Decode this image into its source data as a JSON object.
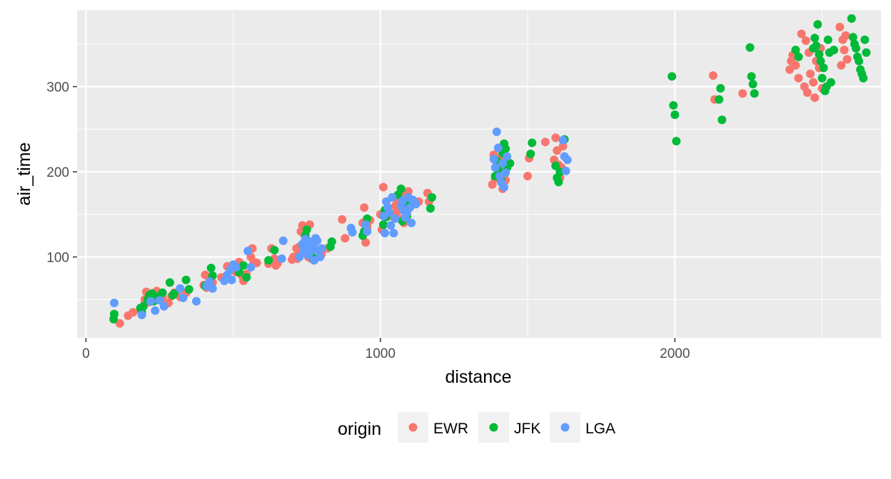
{
  "chart_data": {
    "type": "scatter",
    "title": "",
    "xlabel": "distance",
    "ylabel": "air_time",
    "xlim": [
      -30,
      2700
    ],
    "ylim": [
      5,
      390
    ],
    "x_ticks": [
      0,
      1000,
      2000
    ],
    "y_ticks": [
      100,
      200,
      300
    ],
    "x_minor_ticks": [
      500,
      1500,
      2500
    ],
    "y_minor_ticks": [
      50,
      150,
      250,
      350
    ],
    "grid": true,
    "legend": {
      "title": "origin",
      "position": "bottom"
    },
    "series": [
      {
        "name": "EWR",
        "color": "#F8766D",
        "points": [
          [
            115,
            22
          ],
          [
            143,
            31
          ],
          [
            160,
            35
          ],
          [
            185,
            38
          ],
          [
            200,
            45
          ],
          [
            205,
            59
          ],
          [
            200,
            50
          ],
          [
            215,
            47
          ],
          [
            230,
            56
          ],
          [
            240,
            60
          ],
          [
            260,
            52
          ],
          [
            280,
            46
          ],
          [
            290,
            54
          ],
          [
            300,
            58
          ],
          [
            320,
            53
          ],
          [
            340,
            58
          ],
          [
            400,
            67
          ],
          [
            405,
            79
          ],
          [
            410,
            64
          ],
          [
            420,
            73
          ],
          [
            430,
            70
          ],
          [
            460,
            76
          ],
          [
            480,
            89
          ],
          [
            495,
            85
          ],
          [
            510,
            82
          ],
          [
            520,
            94
          ],
          [
            530,
            78
          ],
          [
            535,
            72
          ],
          [
            545,
            80
          ],
          [
            560,
            100
          ],
          [
            565,
            110
          ],
          [
            570,
            94
          ],
          [
            580,
            93
          ],
          [
            620,
            92
          ],
          [
            630,
            110
          ],
          [
            640,
            98
          ],
          [
            645,
            90
          ],
          [
            650,
            92
          ],
          [
            700,
            97
          ],
          [
            705,
            100
          ],
          [
            715,
            110
          ],
          [
            718,
            98
          ],
          [
            720,
            108
          ],
          [
            725,
            112
          ],
          [
            730,
            130
          ],
          [
            735,
            137
          ],
          [
            740,
            127
          ],
          [
            745,
            105
          ],
          [
            750,
            120
          ],
          [
            755,
            100
          ],
          [
            760,
            138
          ],
          [
            765,
            98
          ],
          [
            770,
            112
          ],
          [
            780,
            118
          ],
          [
            800,
            103
          ],
          [
            820,
            110
          ],
          [
            870,
            144
          ],
          [
            880,
            122
          ],
          [
            940,
            140
          ],
          [
            945,
            158
          ],
          [
            950,
            117
          ],
          [
            955,
            135
          ],
          [
            965,
            143
          ],
          [
            1000,
            150
          ],
          [
            1005,
            132
          ],
          [
            1010,
            182
          ],
          [
            1020,
            155
          ],
          [
            1030,
            148
          ],
          [
            1040,
            170
          ],
          [
            1050,
            160
          ],
          [
            1055,
            153
          ],
          [
            1060,
            165
          ],
          [
            1065,
            145
          ],
          [
            1070,
            175
          ],
          [
            1080,
            140
          ],
          [
            1090,
            157
          ],
          [
            1095,
            177
          ],
          [
            1100,
            160
          ],
          [
            1130,
            165
          ],
          [
            1160,
            175
          ],
          [
            1165,
            165
          ],
          [
            1380,
            185
          ],
          [
            1385,
            220
          ],
          [
            1390,
            192
          ],
          [
            1395,
            208
          ],
          [
            1400,
            200
          ],
          [
            1405,
            215
          ],
          [
            1415,
            180
          ],
          [
            1420,
            196
          ],
          [
            1425,
            190
          ],
          [
            1500,
            195
          ],
          [
            1505,
            216
          ],
          [
            1560,
            235
          ],
          [
            1590,
            214
          ],
          [
            1595,
            240
          ],
          [
            1600,
            225
          ],
          [
            1605,
            208
          ],
          [
            1610,
            193
          ],
          [
            1615,
            205
          ],
          [
            1620,
            230
          ],
          [
            2130,
            313
          ],
          [
            2135,
            285
          ],
          [
            2230,
            292
          ],
          [
            2390,
            320
          ],
          [
            2395,
            330
          ],
          [
            2400,
            337
          ],
          [
            2410,
            325
          ],
          [
            2420,
            310
          ],
          [
            2430,
            362
          ],
          [
            2440,
            300
          ],
          [
            2445,
            354
          ],
          [
            2450,
            293
          ],
          [
            2455,
            340
          ],
          [
            2460,
            315
          ],
          [
            2470,
            305
          ],
          [
            2475,
            287
          ],
          [
            2480,
            330
          ],
          [
            2490,
            322
          ],
          [
            2495,
            345
          ],
          [
            2500,
            298
          ],
          [
            2560,
            370
          ],
          [
            2565,
            325
          ],
          [
            2570,
            355
          ],
          [
            2575,
            343
          ],
          [
            2580,
            360
          ],
          [
            2585,
            332
          ]
        ]
      },
      {
        "name": "JFK",
        "color": "#00BA38",
        "points": [
          [
            94,
            27
          ],
          [
            96,
            33
          ],
          [
            185,
            40
          ],
          [
            190,
            35
          ],
          [
            195,
            42
          ],
          [
            210,
            50
          ],
          [
            215,
            55
          ],
          [
            225,
            57
          ],
          [
            230,
            48
          ],
          [
            240,
            53
          ],
          [
            260,
            58
          ],
          [
            285,
            70
          ],
          [
            295,
            55
          ],
          [
            300,
            57
          ],
          [
            340,
            73
          ],
          [
            350,
            62
          ],
          [
            405,
            66
          ],
          [
            420,
            70
          ],
          [
            425,
            87
          ],
          [
            430,
            78
          ],
          [
            520,
            82
          ],
          [
            535,
            90
          ],
          [
            545,
            76
          ],
          [
            620,
            96
          ],
          [
            640,
            108
          ],
          [
            740,
            113
          ],
          [
            745,
            125
          ],
          [
            750,
            132
          ],
          [
            760,
            116
          ],
          [
            765,
            103
          ],
          [
            770,
            100
          ],
          [
            830,
            112
          ],
          [
            835,
            118
          ],
          [
            940,
            125
          ],
          [
            945,
            130
          ],
          [
            950,
            138
          ],
          [
            955,
            145
          ],
          [
            1010,
            138
          ],
          [
            1015,
            155
          ],
          [
            1020,
            147
          ],
          [
            1060,
            173
          ],
          [
            1070,
            180
          ],
          [
            1075,
            142
          ],
          [
            1080,
            155
          ],
          [
            1085,
            163
          ],
          [
            1090,
            148
          ],
          [
            1170,
            157
          ],
          [
            1175,
            170
          ],
          [
            1390,
            195
          ],
          [
            1395,
            213
          ],
          [
            1400,
            207
          ],
          [
            1405,
            200
          ],
          [
            1410,
            190
          ],
          [
            1415,
            222
          ],
          [
            1420,
            233
          ],
          [
            1425,
            227
          ],
          [
            1430,
            205
          ],
          [
            1440,
            210
          ],
          [
            1510,
            221
          ],
          [
            1515,
            234
          ],
          [
            1595,
            207
          ],
          [
            1600,
            193
          ],
          [
            1605,
            188
          ],
          [
            1610,
            200
          ],
          [
            1625,
            238
          ],
          [
            1990,
            312
          ],
          [
            1995,
            278
          ],
          [
            2000,
            267
          ],
          [
            2005,
            236
          ],
          [
            2150,
            285
          ],
          [
            2155,
            298
          ],
          [
            2160,
            261
          ],
          [
            2255,
            346
          ],
          [
            2260,
            312
          ],
          [
            2265,
            303
          ],
          [
            2270,
            292
          ],
          [
            2410,
            343
          ],
          [
            2420,
            335
          ],
          [
            2470,
            345
          ],
          [
            2475,
            357
          ],
          [
            2480,
            348
          ],
          [
            2485,
            373
          ],
          [
            2490,
            338
          ],
          [
            2495,
            330
          ],
          [
            2500,
            310
          ],
          [
            2505,
            322
          ],
          [
            2510,
            295
          ],
          [
            2515,
            300
          ],
          [
            2520,
            355
          ],
          [
            2525,
            340
          ],
          [
            2530,
            305
          ],
          [
            2540,
            343
          ],
          [
            2600,
            380
          ],
          [
            2605,
            358
          ],
          [
            2610,
            350
          ],
          [
            2615,
            345
          ],
          [
            2620,
            335
          ],
          [
            2625,
            330
          ],
          [
            2630,
            320
          ],
          [
            2635,
            315
          ],
          [
            2640,
            310
          ],
          [
            2645,
            355
          ],
          [
            2650,
            340
          ]
        ]
      },
      {
        "name": "LGA",
        "color": "#619CFF",
        "points": [
          [
            96,
            46
          ],
          [
            190,
            32
          ],
          [
            220,
            48
          ],
          [
            235,
            37
          ],
          [
            250,
            49
          ],
          [
            265,
            42
          ],
          [
            320,
            63
          ],
          [
            330,
            52
          ],
          [
            375,
            48
          ],
          [
            410,
            66
          ],
          [
            420,
            71
          ],
          [
            430,
            63
          ],
          [
            470,
            72
          ],
          [
            480,
            79
          ],
          [
            490,
            85
          ],
          [
            495,
            73
          ],
          [
            500,
            91
          ],
          [
            510,
            88
          ],
          [
            550,
            107
          ],
          [
            560,
            88
          ],
          [
            665,
            98
          ],
          [
            670,
            119
          ],
          [
            725,
            100
          ],
          [
            735,
            115
          ],
          [
            740,
            108
          ],
          [
            745,
            121
          ],
          [
            750,
            114
          ],
          [
            755,
            102
          ],
          [
            760,
            118
          ],
          [
            765,
            107
          ],
          [
            770,
            112
          ],
          [
            775,
            96
          ],
          [
            780,
            122
          ],
          [
            785,
            119
          ],
          [
            790,
            108
          ],
          [
            795,
            100
          ],
          [
            800,
            110
          ],
          [
            900,
            134
          ],
          [
            905,
            129
          ],
          [
            950,
            138
          ],
          [
            955,
            130
          ],
          [
            1010,
            148
          ],
          [
            1015,
            128
          ],
          [
            1020,
            165
          ],
          [
            1025,
            158
          ],
          [
            1030,
            152
          ],
          [
            1035,
            137
          ],
          [
            1040,
            170
          ],
          [
            1045,
            128
          ],
          [
            1050,
            145
          ],
          [
            1070,
            160
          ],
          [
            1075,
            166
          ],
          [
            1080,
            154
          ],
          [
            1085,
            146
          ],
          [
            1090,
            152
          ],
          [
            1095,
            170
          ],
          [
            1100,
            158
          ],
          [
            1105,
            140
          ],
          [
            1110,
            167
          ],
          [
            1120,
            162
          ],
          [
            1385,
            215
          ],
          [
            1390,
            205
          ],
          [
            1395,
            247
          ],
          [
            1400,
            228
          ],
          [
            1405,
            195
          ],
          [
            1410,
            188
          ],
          [
            1415,
            210
          ],
          [
            1420,
            182
          ],
          [
            1425,
            199
          ],
          [
            1430,
            218
          ],
          [
            1620,
            237
          ],
          [
            1625,
            218
          ],
          [
            1630,
            201
          ],
          [
            1635,
            214
          ]
        ]
      }
    ]
  }
}
